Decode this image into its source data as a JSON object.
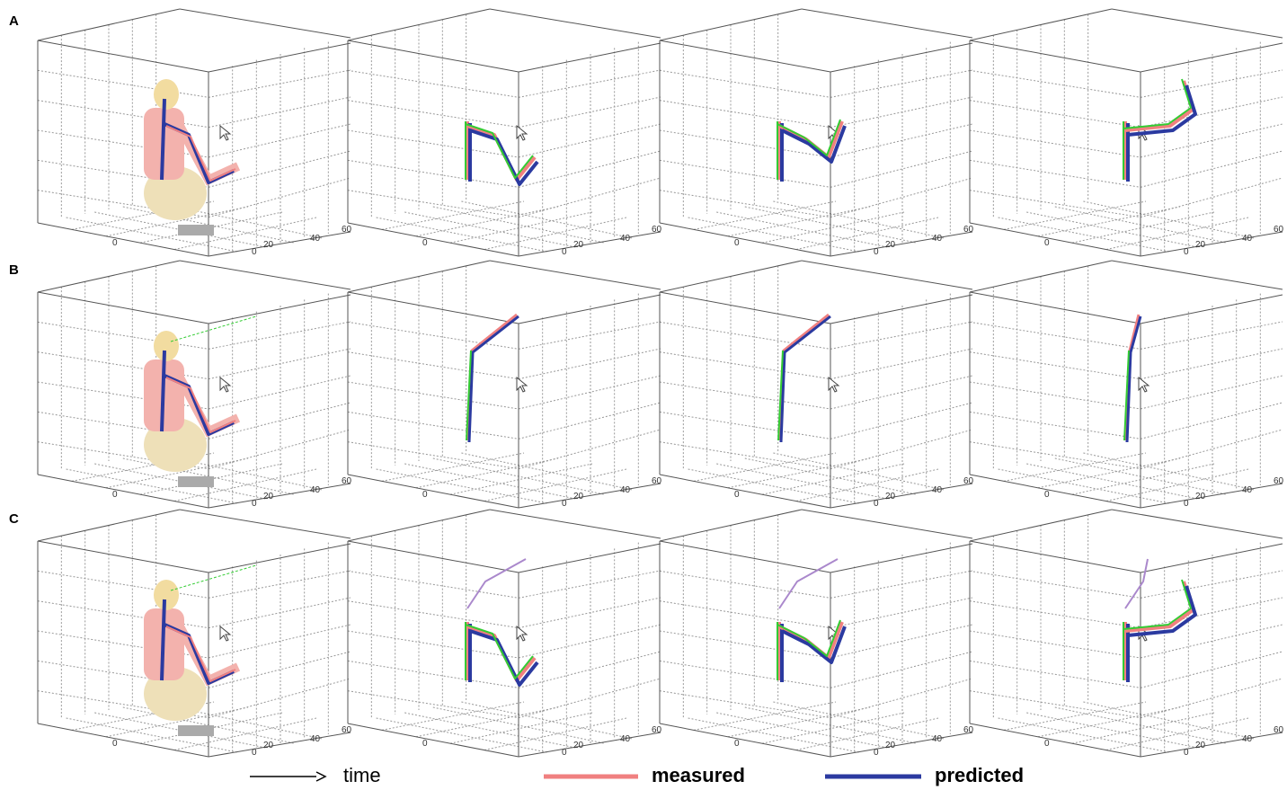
{
  "row_labels": [
    "A",
    "B",
    "C"
  ],
  "axis_tick_labels": [
    "0",
    "0",
    "20",
    "40",
    "60"
  ],
  "legend": {
    "time_label": "time",
    "items": [
      {
        "label": "measured",
        "color": "#f08080"
      },
      {
        "label": "predicted",
        "color": "#2b3aa0"
      }
    ]
  }
}
